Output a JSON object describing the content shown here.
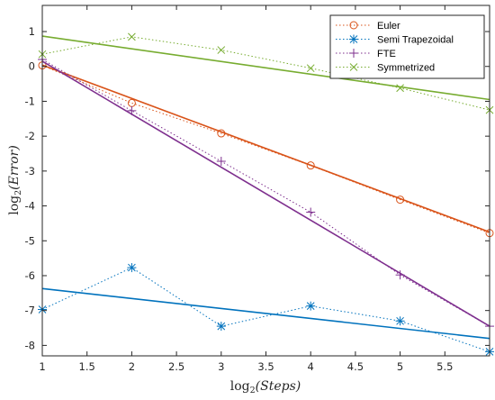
{
  "chart_data": {
    "type": "line",
    "xlabel_base": "log",
    "xlabel_sub": "2",
    "xlabel_arg": "(Steps)",
    "ylabel_base": "log",
    "ylabel_sub": "2",
    "ylabel_arg": "(Error)",
    "xlim": [
      1,
      6
    ],
    "ylim": [
      -8.3,
      1.75
    ],
    "xticks": [
      "1",
      "1.5",
      "2",
      "2.5",
      "3",
      "3.5",
      "4",
      "4.5",
      "5",
      "5.5"
    ],
    "xtick_values": [
      1,
      1.5,
      2,
      2.5,
      3,
      3.5,
      4,
      4.5,
      5,
      5.5
    ],
    "yticks": [
      "1",
      "0",
      "-1",
      "-2",
      "-3",
      "-4",
      "-5",
      "-6",
      "-7",
      "-8"
    ],
    "ytick_values": [
      1,
      0,
      -1,
      -2,
      -3,
      -4,
      -5,
      -6,
      -7,
      -8
    ],
    "grid": false,
    "legend_position": "top-right",
    "series": [
      {
        "name": "Euler",
        "color": "#D95319",
        "marker": "circle",
        "x": [
          1,
          2,
          3,
          4,
          5,
          6
        ],
        "y": [
          0.03,
          -1.05,
          -1.92,
          -2.84,
          -3.82,
          -4.78
        ],
        "fit": [
          0.04,
          -4.75
        ]
      },
      {
        "name": "Semi Trapezoidal",
        "color": "#0072BD",
        "marker": "asterisk",
        "x": [
          1,
          2,
          3,
          4,
          5,
          6
        ],
        "y": [
          -6.97,
          -5.77,
          -7.45,
          -6.87,
          -7.3,
          -8.18
        ],
        "fit": [
          -6.37,
          -7.8
        ]
      },
      {
        "name": "FTE",
        "color": "#7E2F8E",
        "marker": "plus",
        "x": [
          1,
          2,
          3,
          4,
          5,
          6
        ],
        "y": [
          0.2,
          -1.27,
          -2.72,
          -4.18,
          -5.98,
          -7.45
        ],
        "fit": [
          0.15,
          -7.45
        ]
      },
      {
        "name": "Symmetrized",
        "color": "#77AC30",
        "marker": "cross",
        "x": [
          1,
          2,
          3,
          4,
          5,
          6
        ],
        "y": [
          0.35,
          0.85,
          0.47,
          -0.05,
          -0.62,
          -1.25
        ],
        "fit": [
          0.87,
          -0.95
        ]
      }
    ]
  }
}
